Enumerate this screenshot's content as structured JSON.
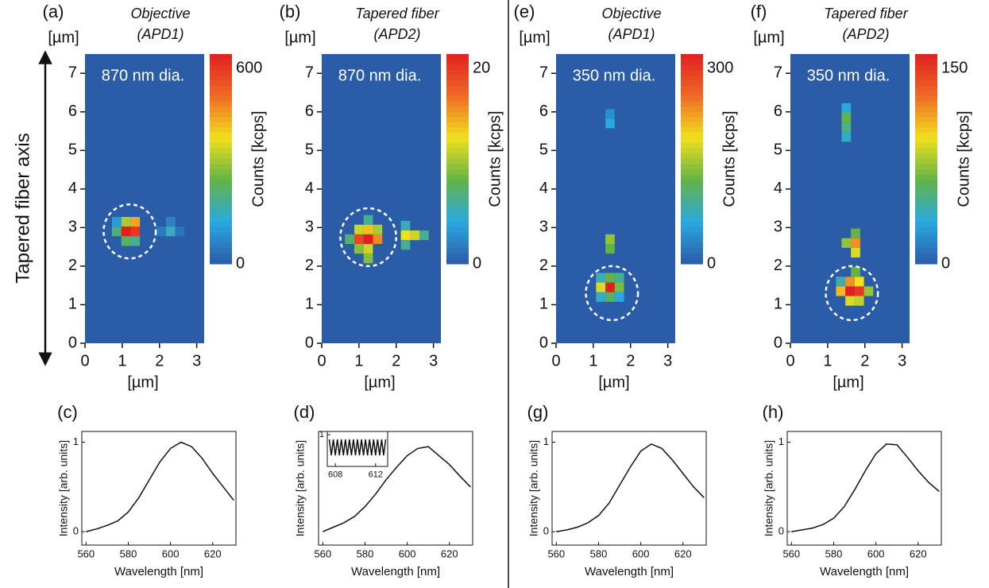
{
  "figure": {
    "ylabel": "Tapered fiber axis"
  },
  "chart_data": [
    {
      "type": "heatmap",
      "label": "(a)",
      "title": "Objective",
      "subtitle": "(APD1)",
      "annotation": "870 nm dia.",
      "ylabel": "[µm]",
      "xlabel": "[µm]",
      "xlim": [
        0,
        3.2
      ],
      "ylim": [
        0,
        7.5
      ],
      "xticks": [
        0,
        1,
        2,
        3
      ],
      "yticks": [
        0,
        1,
        2,
        3,
        4,
        5,
        6,
        7
      ],
      "cell_size": 0.25,
      "cells": [
        [
          1.1,
          3.15,
          300
        ],
        [
          1.35,
          3.15,
          420
        ],
        [
          1.1,
          2.9,
          600
        ],
        [
          1.35,
          2.9,
          560
        ],
        [
          0.85,
          2.9,
          200
        ],
        [
          1.1,
          2.65,
          220
        ],
        [
          1.35,
          2.65,
          180
        ],
        [
          0.85,
          3.15,
          100
        ],
        [
          2.3,
          2.9,
          150
        ],
        [
          2.3,
          3.15,
          60
        ],
        [
          2.55,
          2.9,
          40
        ],
        [
          2.05,
          2.9,
          50
        ]
      ],
      "clim": [
        0,
        600
      ],
      "cticks": [
        0,
        600
      ],
      "clabel": "Counts [kcps]",
      "colormap": [
        "#2b5ca8",
        "#2aa9e0",
        "#62b446",
        "#f2e01c",
        "#ef6a25",
        "#e0201f"
      ],
      "circle": {
        "x": 1.2,
        "y": 2.9,
        "r": 0.7
      }
    },
    {
      "type": "heatmap",
      "label": "(b)",
      "title": "Tapered fiber",
      "subtitle": "(APD2)",
      "annotation": "870 nm dia.",
      "ylabel": "[µm]",
      "xlabel": "[µm]",
      "xlim": [
        0,
        3.2
      ],
      "ylim": [
        0,
        7.5
      ],
      "xticks": [
        0,
        1,
        2,
        3
      ],
      "yticks": [
        0,
        1,
        2,
        3,
        4,
        5,
        6,
        7
      ],
      "cell_size": 0.25,
      "cells": [
        [
          1.0,
          2.95,
          11
        ],
        [
          1.25,
          2.95,
          13
        ],
        [
          1.0,
          2.7,
          18
        ],
        [
          1.25,
          2.7,
          20
        ],
        [
          1.5,
          2.7,
          15
        ],
        [
          1.25,
          2.45,
          11
        ],
        [
          1.0,
          2.45,
          9
        ],
        [
          0.75,
          2.7,
          7
        ],
        [
          1.5,
          2.95,
          10
        ],
        [
          1.25,
          3.2,
          6
        ],
        [
          1.25,
          2.2,
          9
        ],
        [
          2.25,
          2.8,
          12
        ],
        [
          2.5,
          2.8,
          11
        ],
        [
          2.75,
          2.8,
          6
        ],
        [
          2.25,
          2.55,
          6
        ],
        [
          2.25,
          3.05,
          5
        ]
      ],
      "clim": [
        0,
        20
      ],
      "cticks": [
        0,
        20
      ],
      "clabel": "Counts [kcps]",
      "colormap": [
        "#2b5ca8",
        "#2aa9e0",
        "#62b446",
        "#f2e01c",
        "#ef6a25",
        "#e0201f"
      ],
      "circle": {
        "x": 1.25,
        "y": 2.75,
        "r": 0.75
      }
    },
    {
      "type": "heatmap",
      "label": "(e)",
      "title": "Objective",
      "subtitle": "(APD1)",
      "annotation": "350 nm dia.",
      "ylabel": "[µm]",
      "xlabel": "[µm]",
      "xlim": [
        0,
        3.2
      ],
      "ylim": [
        0,
        7.5
      ],
      "xticks": [
        0,
        1,
        2,
        3
      ],
      "yticks": [
        0,
        1,
        2,
        3,
        4,
        5,
        6,
        7
      ],
      "cell_size": 0.25,
      "cells": [
        [
          1.45,
          1.45,
          300
        ],
        [
          1.2,
          1.45,
          170
        ],
        [
          1.7,
          1.45,
          130
        ],
        [
          1.45,
          1.7,
          120
        ],
        [
          1.45,
          1.2,
          110
        ],
        [
          1.2,
          1.7,
          80
        ],
        [
          1.7,
          1.7,
          90
        ],
        [
          1.2,
          1.2,
          70
        ],
        [
          1.7,
          1.2,
          60
        ],
        [
          1.45,
          2.45,
          120
        ],
        [
          1.45,
          2.7,
          140
        ],
        [
          1.45,
          5.7,
          60
        ],
        [
          1.45,
          5.95,
          40
        ]
      ],
      "clim": [
        0,
        300
      ],
      "cticks": [
        0,
        300
      ],
      "clabel": "Counts [kcps]",
      "colormap": [
        "#2b5ca8",
        "#2aa9e0",
        "#62b446",
        "#f2e01c",
        "#ef6a25",
        "#e0201f"
      ],
      "circle": {
        "x": 1.5,
        "y": 1.3,
        "r": 0.7
      }
    },
    {
      "type": "heatmap",
      "label": "(f)",
      "title": "Tapered fiber",
      "subtitle": "(APD2)",
      "annotation": "350 nm dia.",
      "ylabel": "[µm]",
      "xlabel": "[µm]",
      "xlim": [
        0,
        3.2
      ],
      "ylim": [
        0,
        7.5
      ],
      "xticks": [
        0,
        1,
        2,
        3
      ],
      "yticks": [
        0,
        1,
        2,
        3,
        4,
        5,
        6,
        7
      ],
      "cell_size": 0.25,
      "cells": [
        [
          1.6,
          1.35,
          150
        ],
        [
          1.85,
          1.35,
          140
        ],
        [
          1.35,
          1.35,
          100
        ],
        [
          1.6,
          1.6,
          110
        ],
        [
          1.85,
          1.6,
          90
        ],
        [
          1.6,
          1.1,
          85
        ],
        [
          1.85,
          1.1,
          80
        ],
        [
          1.35,
          1.6,
          40
        ],
        [
          2.1,
          1.35,
          70
        ],
        [
          1.75,
          1.85,
          60
        ],
        [
          1.75,
          2.35,
          85
        ],
        [
          1.75,
          2.6,
          110
        ],
        [
          1.5,
          2.6,
          70
        ],
        [
          1.75,
          2.85,
          60
        ],
        [
          1.5,
          5.6,
          50
        ],
        [
          1.5,
          5.85,
          60
        ],
        [
          1.5,
          5.35,
          35
        ],
        [
          1.5,
          6.1,
          30
        ]
      ],
      "clim": [
        0,
        150
      ],
      "cticks": [
        0,
        150
      ],
      "clabel": "Counts [kcps]",
      "colormap": [
        "#2b5ca8",
        "#2aa9e0",
        "#62b446",
        "#f2e01c",
        "#ef6a25",
        "#e0201f"
      ],
      "circle": {
        "x": 1.65,
        "y": 1.3,
        "r": 0.7
      }
    },
    {
      "type": "line",
      "label": "(c)",
      "xlabel": "Wavelength [nm]",
      "ylabel": "Intensity [arb. units]",
      "color": "#111111",
      "x": [
        560,
        565,
        570,
        575,
        580,
        585,
        590,
        595,
        600,
        605,
        610,
        615,
        620,
        625,
        630
      ],
      "values": [
        0,
        0.03,
        0.07,
        0.12,
        0.22,
        0.38,
        0.58,
        0.78,
        0.93,
        1.0,
        0.95,
        0.82,
        0.65,
        0.5,
        0.35
      ],
      "xlim": [
        558,
        631
      ],
      "ylim": [
        -0.15,
        1.12
      ],
      "xticks": [
        560,
        580,
        600,
        620
      ],
      "yticks": [
        0,
        1
      ]
    },
    {
      "type": "line",
      "label": "(d)",
      "xlabel": "Wavelength [nm]",
      "ylabel": "Intensity [arb. units]",
      "color": "#111111",
      "x": [
        560,
        565,
        570,
        575,
        580,
        585,
        590,
        595,
        600,
        605,
        610,
        615,
        620,
        625,
        630
      ],
      "values": [
        0,
        0.05,
        0.1,
        0.17,
        0.28,
        0.42,
        0.58,
        0.72,
        0.85,
        0.93,
        0.95,
        0.85,
        0.75,
        0.62,
        0.5
      ],
      "xlim": [
        558,
        631
      ],
      "ylim": [
        -0.15,
        1.12
      ],
      "xticks": [
        560,
        580,
        600,
        620
      ],
      "yticks": [],
      "inset": {
        "x": [
          607.4,
          607.6,
          607.8,
          608.0,
          608.2,
          608.4,
          608.6,
          608.8,
          609.0,
          609.2,
          609.4,
          609.6,
          609.8,
          610.0,
          610.2,
          610.4,
          610.6,
          610.8,
          611.0,
          611.2,
          611.4,
          611.6,
          611.8,
          612.0,
          612.2,
          612.4,
          612.6,
          612.8,
          613.0
        ],
        "values": [
          0.85,
          0.35,
          0.85,
          0.35,
          0.85,
          0.35,
          0.85,
          0.35,
          0.85,
          0.35,
          0.85,
          0.35,
          0.85,
          0.35,
          0.85,
          0.35,
          0.85,
          0.35,
          0.85,
          0.35,
          0.85,
          0.35,
          0.85,
          0.35,
          0.85,
          0.35,
          0.85,
          0.35,
          0.85
        ],
        "xlim": [
          607.2,
          613.2
        ],
        "ylim": [
          0,
          1.1
        ],
        "xticks": [
          608,
          612
        ],
        "yticks": [
          1
        ]
      }
    },
    {
      "type": "line",
      "label": "(g)",
      "xlabel": "Wavelength [nm]",
      "ylabel": "Intensity [arb. units]",
      "color": "#111111",
      "x": [
        560,
        565,
        570,
        575,
        580,
        585,
        590,
        595,
        600,
        605,
        610,
        615,
        620,
        625,
        630
      ],
      "values": [
        0,
        0.02,
        0.05,
        0.1,
        0.18,
        0.32,
        0.52,
        0.72,
        0.9,
        0.98,
        0.93,
        0.8,
        0.65,
        0.5,
        0.38
      ],
      "xlim": [
        558,
        631
      ],
      "ylim": [
        -0.15,
        1.12
      ],
      "xticks": [
        560,
        580,
        600,
        620
      ],
      "yticks": [
        0,
        1
      ]
    },
    {
      "type": "line",
      "label": "(h)",
      "xlabel": "Wavelength [nm]",
      "ylabel": "Intensity [arb. units]",
      "color": "#111111",
      "x": [
        560,
        565,
        570,
        575,
        580,
        585,
        590,
        595,
        600,
        605,
        610,
        615,
        620,
        625,
        630
      ],
      "values": [
        0,
        0.02,
        0.04,
        0.08,
        0.15,
        0.28,
        0.47,
        0.68,
        0.87,
        0.98,
        0.97,
        0.83,
        0.68,
        0.55,
        0.45
      ],
      "xlim": [
        558,
        631
      ],
      "ylim": [
        -0.15,
        1.12
      ],
      "xticks": [
        560,
        580,
        600,
        620
      ],
      "yticks": [
        0,
        1
      ]
    }
  ]
}
